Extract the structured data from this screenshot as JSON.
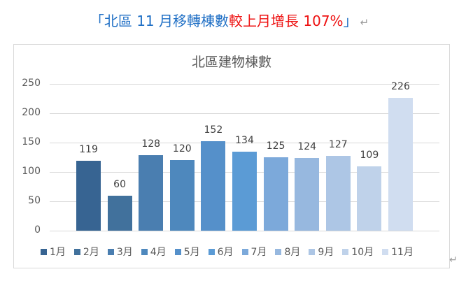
{
  "headline": {
    "open_bracket": "「",
    "blue_text": "北區 11 月移轉棟數",
    "red_text": "較上月增長 107%",
    "close_bracket": "」",
    "paragraph_mark": "↵"
  },
  "paragraph_mark_bottom": "↵",
  "colors": {
    "headline_blue": "#1f6fc5",
    "headline_red": "#ee1111",
    "grid": "#d9d9d9",
    "axis_text": "#595959"
  },
  "chart_data": {
    "type": "bar",
    "title": "北區建物棟數",
    "xlabel": "",
    "ylabel": "",
    "ylim": [
      0,
      250
    ],
    "yticks": [
      0,
      50,
      100,
      150,
      200,
      250
    ],
    "grid": true,
    "legend_position": "bottom",
    "categories": [
      "1月",
      "2月",
      "3月",
      "4月",
      "5月",
      "6月",
      "7月",
      "8月",
      "9月",
      "10月",
      "11月"
    ],
    "values": [
      119,
      60,
      128,
      120,
      152,
      134,
      125,
      124,
      127,
      109,
      226
    ],
    "series": [
      {
        "name": "1月",
        "values": [
          119
        ],
        "color": "#376492"
      },
      {
        "name": "2月",
        "values": [
          60
        ],
        "color": "#41719c"
      },
      {
        "name": "3月",
        "values": [
          128
        ],
        "color": "#4a7eb0"
      },
      {
        "name": "4月",
        "values": [
          120
        ],
        "color": "#4e88bd"
      },
      {
        "name": "5月",
        "values": [
          152
        ],
        "color": "#5590ca"
      },
      {
        "name": "6月",
        "values": [
          134
        ],
        "color": "#5b9bd5"
      },
      {
        "name": "7月",
        "values": [
          125
        ],
        "color": "#7ca9da"
      },
      {
        "name": "8月",
        "values": [
          124
        ],
        "color": "#97b8df"
      },
      {
        "name": "9月",
        "values": [
          127
        ],
        "color": "#adc6e5"
      },
      {
        "name": "10月",
        "values": [
          109
        ],
        "color": "#bfd2ea"
      },
      {
        "name": "11月",
        "values": [
          226
        ],
        "color": "#d0ddf0"
      }
    ],
    "data_labels": [
      "119",
      "60",
      "128",
      "120",
      "152",
      "134",
      "125",
      "124",
      "127",
      "109",
      "226"
    ]
  }
}
